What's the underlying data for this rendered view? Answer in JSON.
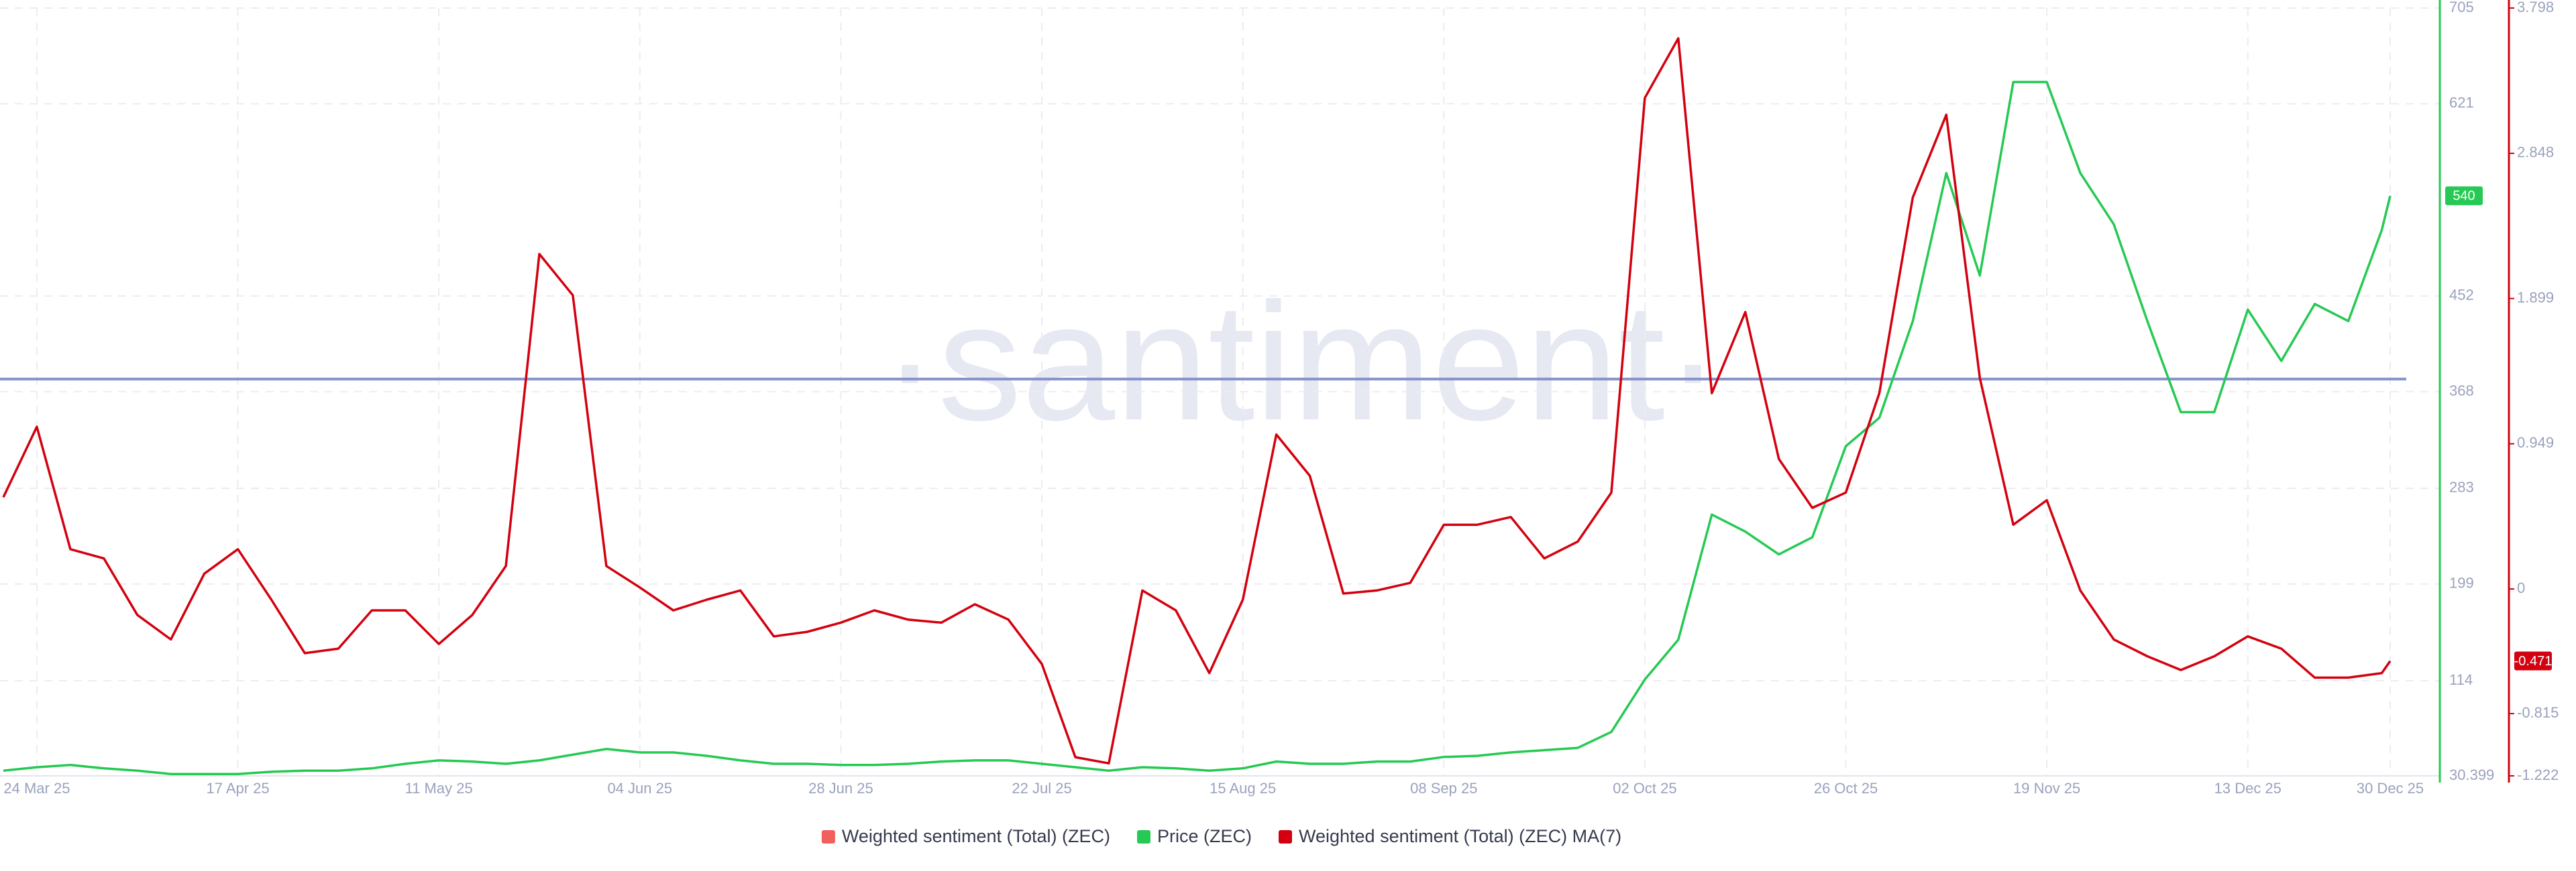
{
  "chart_data": {
    "type": "line",
    "watermark": "·santiment·",
    "x": [
      "2025-03-20",
      "2025-03-24",
      "2025-03-28",
      "2025-04-01",
      "2025-04-05",
      "2025-04-09",
      "2025-04-13",
      "2025-04-17",
      "2025-04-21",
      "2025-04-25",
      "2025-04-29",
      "2025-05-03",
      "2025-05-07",
      "2025-05-11",
      "2025-05-15",
      "2025-05-19",
      "2025-05-23",
      "2025-05-27",
      "2025-05-31",
      "2025-06-04",
      "2025-06-08",
      "2025-06-12",
      "2025-06-16",
      "2025-06-20",
      "2025-06-24",
      "2025-06-28",
      "2025-07-02",
      "2025-07-06",
      "2025-07-10",
      "2025-07-14",
      "2025-07-18",
      "2025-07-22",
      "2025-07-26",
      "2025-07-30",
      "2025-08-03",
      "2025-08-07",
      "2025-08-11",
      "2025-08-15",
      "2025-08-19",
      "2025-08-23",
      "2025-08-27",
      "2025-08-31",
      "2025-09-04",
      "2025-09-08",
      "2025-09-12",
      "2025-09-16",
      "2025-09-20",
      "2025-09-24",
      "2025-09-28",
      "2025-10-02",
      "2025-10-06",
      "2025-10-10",
      "2025-10-14",
      "2025-10-18",
      "2025-10-22",
      "2025-10-26",
      "2025-10-30",
      "2025-11-03",
      "2025-11-07",
      "2025-11-11",
      "2025-11-15",
      "2025-11-19",
      "2025-11-23",
      "2025-11-27",
      "2025-12-01",
      "2025-12-05",
      "2025-12-09",
      "2025-12-13",
      "2025-12-17",
      "2025-12-21",
      "2025-12-25",
      "2025-12-29",
      "2025-12-30"
    ],
    "xlim": [
      "2025-03-20",
      "2025-12-30"
    ],
    "xticks": [
      {
        "value": "2025-03-24",
        "label": "24 Mar 25"
      },
      {
        "value": "2025-04-17",
        "label": "17 Apr 25"
      },
      {
        "value": "2025-05-11",
        "label": "11 May 25"
      },
      {
        "value": "2025-06-04",
        "label": "04 Jun 25"
      },
      {
        "value": "2025-06-28",
        "label": "28 Jun 25"
      },
      {
        "value": "2025-07-22",
        "label": "22 Jul 25"
      },
      {
        "value": "2025-08-15",
        "label": "15 Aug 25"
      },
      {
        "value": "2025-09-08",
        "label": "08 Sep 25"
      },
      {
        "value": "2025-10-02",
        "label": "02 Oct 25"
      },
      {
        "value": "2025-10-26",
        "label": "26 Oct 25"
      },
      {
        "value": "2025-11-19",
        "label": "19 Nov 25"
      },
      {
        "value": "2025-12-13",
        "label": "13 Dec 25"
      },
      {
        "value": "2025-12-30",
        "label": "30 Dec 25"
      }
    ],
    "ylim": [
      30.399,
      705
    ],
    "yticks": [
      30.399,
      114,
      199,
      283,
      368,
      452,
      621,
      705
    ],
    "y_color": "#26c953",
    "y2lim": [
      -1.222,
      3.798
    ],
    "y2ticks": [
      -1.222,
      -0.815,
      0,
      0.949,
      1.899,
      2.848,
      3.798
    ],
    "y2_color": "#d3010f",
    "grid": true,
    "reference_line": {
      "value": 379,
      "color": "#8591c9"
    },
    "series": [
      {
        "name": "Weighted sentiment (Total) (ZEC)",
        "color": "#f0605d",
        "visible": false
      },
      {
        "name": "Price (ZEC)",
        "color": "#26c953",
        "values": [
          35,
          38,
          40,
          37,
          35,
          32,
          32,
          32,
          34,
          35,
          35,
          37,
          41,
          44,
          43,
          41,
          44,
          49,
          54,
          51,
          51,
          48,
          44,
          41,
          41,
          40,
          40,
          41,
          43,
          44,
          44,
          41,
          38,
          35,
          38,
          37,
          35,
          37,
          43,
          41,
          41,
          43,
          43,
          47,
          48,
          51,
          53,
          55,
          69,
          115,
          150,
          260,
          245,
          225,
          240,
          320,
          345,
          430,
          560,
          470,
          640,
          640,
          560,
          515,
          430,
          350,
          350,
          440,
          395,
          445,
          430,
          510,
          540
        ]
      },
      {
        "name": "Weighted sentiment (Total) (ZEC) MA(7)",
        "color": "#d3010f",
        "axis": "y2",
        "values": [
          0.6,
          1.06,
          0.26,
          0.2,
          -0.17,
          -0.33,
          0.1,
          0.26,
          -0.07,
          -0.42,
          -0.39,
          -0.14,
          -0.14,
          -0.36,
          -0.17,
          0.15,
          2.19,
          1.92,
          0.15,
          0.01,
          -0.14,
          -0.07,
          -0.01,
          -0.31,
          -0.28,
          -0.22,
          -0.14,
          -0.2,
          -0.22,
          -0.1,
          -0.2,
          -0.49,
          -1.1,
          -1.14,
          -0.01,
          -0.14,
          -0.55,
          -0.07,
          1.01,
          0.74,
          -0.03,
          -0.01,
          0.04,
          0.42,
          0.42,
          0.47,
          0.2,
          0.31,
          0.63,
          3.21,
          3.6,
          1.28,
          1.81,
          0.85,
          0.53,
          0.63,
          1.28,
          2.56,
          3.1,
          1.38,
          0.42,
          0.58,
          -0.01,
          -0.33,
          -0.44,
          -0.53,
          -0.44,
          -0.31,
          -0.39,
          -0.58,
          -0.58,
          -0.55,
          -0.471
        ]
      }
    ]
  }
}
